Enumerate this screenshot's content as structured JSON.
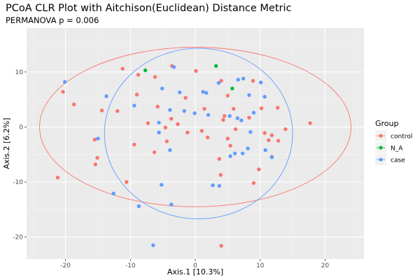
{
  "chart_data": {
    "type": "scatter",
    "title": "PCoA CLR Plot with Aitchison(Euclidean) Distance Metric",
    "subtitle": "PERMANOVA p = 0.006",
    "xlabel": "Axis.1  [10.3%]",
    "ylabel": "Axis.2  [6.2%]",
    "xlim": [
      -26,
      26
    ],
    "ylim": [
      -24,
      18
    ],
    "xticks": [
      -20,
      -10,
      0,
      10,
      20
    ],
    "yticks": [
      -20,
      -10,
      0,
      10
    ],
    "xtick_labels": [
      "-20",
      "-10",
      "0",
      "10",
      "20"
    ],
    "ytick_labels": [
      "-20",
      "-10",
      "0",
      "10"
    ],
    "grid": true,
    "background": "#ebebeb",
    "legend": {
      "title": "Group",
      "position": "right",
      "entries": [
        "control",
        "N_A",
        "case"
      ]
    },
    "series": [
      {
        "name": "control",
        "color": "#f8766d",
        "points": [
          [
            -21.2,
            -9.2
          ],
          [
            -20.4,
            6.4
          ],
          [
            -18.7,
            4.1
          ],
          [
            -15.5,
            -2.3
          ],
          [
            -15.4,
            -6.8
          ],
          [
            -15.1,
            -5.6
          ],
          [
            -14.4,
            3.0
          ],
          [
            -12.0,
            2.9
          ],
          [
            -11.2,
            10.6
          ],
          [
            -10.6,
            -10.0
          ],
          [
            -9.4,
            -3.2
          ],
          [
            -9.0,
            5.9
          ],
          [
            -8.8,
            9.5
          ],
          [
            -7.3,
            0.7
          ],
          [
            -6.3,
            -4.6
          ],
          [
            -6.2,
            9.1
          ],
          [
            -5.8,
            3.7
          ],
          [
            -4.6,
            -0.1
          ],
          [
            -4.4,
            -2.6
          ],
          [
            -3.7,
            1.5
          ],
          [
            -3.6,
            11.1
          ],
          [
            -2.7,
            0.5
          ],
          [
            -1.5,
            5.3
          ],
          [
            -1.2,
            -1.0
          ],
          [
            0.1,
            10.2
          ],
          [
            1.0,
            -0.7
          ],
          [
            1.4,
            3.3
          ],
          [
            1.9,
            -1.9
          ],
          [
            3.7,
            -5.8
          ],
          [
            3.9,
            -8.7
          ],
          [
            4.0,
            8.4
          ],
          [
            4.0,
            -21.6
          ],
          [
            4.3,
            1.3
          ],
          [
            4.5,
            2.0
          ],
          [
            5.0,
            -2.1
          ],
          [
            5.0,
            5.7
          ],
          [
            5.4,
            -3.4
          ],
          [
            5.9,
            3.3
          ],
          [
            6.2,
            -0.4
          ],
          [
            8.3,
            1.7
          ],
          [
            8.9,
            8.4
          ],
          [
            9.0,
            -10.2
          ],
          [
            9.8,
            -7.7
          ],
          [
            10.2,
            3.4
          ],
          [
            10.7,
            -1.1
          ],
          [
            11.3,
            -2.4
          ],
          [
            11.8,
            -5.4
          ],
          [
            11.8,
            -1.5
          ],
          [
            12.7,
            3.5
          ],
          [
            12.8,
            -2.5
          ],
          [
            13.9,
            -0.4
          ],
          [
            17.7,
            0.7
          ]
        ]
      },
      {
        "name": "N_A",
        "color": "#00ba38",
        "points": [
          [
            -7.7,
            10.3
          ],
          [
            3.2,
            11.1
          ],
          [
            5.7,
            7.0
          ]
        ]
      },
      {
        "name": "case",
        "color": "#619cff",
        "points": [
          [
            -20.1,
            8.2
          ],
          [
            -15.0,
            -2.1
          ],
          [
            -13.7,
            5.6
          ],
          [
            -12.6,
            -12.1
          ],
          [
            -9.4,
            3.9
          ],
          [
            -8.7,
            -14.4
          ],
          [
            -6.5,
            -21.5
          ],
          [
            -5.6,
            0.8
          ],
          [
            -5.6,
            -1.0
          ],
          [
            -5.2,
            -10.5
          ],
          [
            -5.1,
            7.0
          ],
          [
            -3.9,
            -4.2
          ],
          [
            -3.9,
            3.1
          ],
          [
            -3.7,
            -14.1
          ],
          [
            -3.3,
            10.9
          ],
          [
            -2.4,
            6.3
          ],
          [
            -1.7,
            2.9
          ],
          [
            -0.1,
            2.5
          ],
          [
            1.2,
            6.4
          ],
          [
            1.7,
            6.2
          ],
          [
            2.0,
            2.2
          ],
          [
            2.7,
            -10.6
          ],
          [
            3.6,
            8.0
          ],
          [
            3.7,
            -10.7
          ],
          [
            5.3,
            2.0
          ],
          [
            5.4,
            -5.3
          ],
          [
            6.1,
            -4.8
          ],
          [
            6.5,
            1.6
          ],
          [
            6.6,
            8.6
          ],
          [
            7.1,
            1.2
          ],
          [
            7.3,
            -4.8
          ],
          [
            7.4,
            8.8
          ],
          [
            8.1,
            -3.9
          ],
          [
            8.3,
            5.8
          ],
          [
            8.5,
            -0.9
          ],
          [
            9.0,
            2.6
          ],
          [
            10.1,
            8.1
          ],
          [
            10.7,
            5.5
          ],
          [
            10.8,
            -4.2
          ],
          [
            11.8,
            -5.5
          ]
        ]
      }
    ],
    "ellipses": [
      {
        "group": "control",
        "color": "#f8766d",
        "center": [
          0,
          0
        ],
        "semi_axis_x": 24.0,
        "semi_axis_y": 14.5
      },
      {
        "group": "case",
        "color": "#619cff",
        "center": [
          0.5,
          -1.2
        ],
        "semi_axis_x": 14.5,
        "semi_axis_y": 15.5
      }
    ]
  }
}
